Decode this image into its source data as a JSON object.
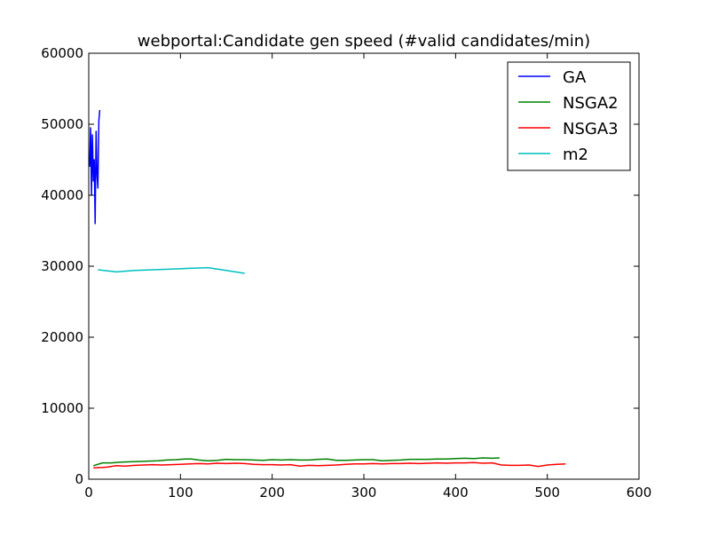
{
  "chart_data": {
    "type": "line",
    "title": "webportal:Candidate gen speed (#valid candidates/min)",
    "xlabel": "",
    "ylabel": "",
    "xlim": [
      0,
      600
    ],
    "ylim": [
      0,
      60000
    ],
    "x_ticks": [
      0,
      100,
      200,
      300,
      400,
      500,
      600
    ],
    "y_ticks": [
      0,
      10000,
      20000,
      30000,
      40000,
      50000,
      60000
    ],
    "grid": false,
    "legend_position": "top-right",
    "series": [
      {
        "name": "GA",
        "color": "#0000ff",
        "x": [
          1,
          2,
          3,
          4,
          5,
          6,
          7,
          8,
          9,
          10,
          11,
          12
        ],
        "y": [
          44000,
          49500,
          40000,
          48500,
          42000,
          45000,
          36000,
          49000,
          43000,
          41000,
          50500,
          52000
        ]
      },
      {
        "name": "NSGA2",
        "color": "#008000",
        "x": [
          5,
          15,
          25,
          35,
          45,
          55,
          65,
          75,
          85,
          95,
          105,
          112,
          120,
          130,
          140,
          150,
          160,
          170,
          180,
          190,
          200,
          210,
          220,
          230,
          240,
          250,
          260,
          270,
          280,
          290,
          300,
          310,
          320,
          330,
          340,
          350,
          360,
          370,
          380,
          390,
          400,
          410,
          420,
          430,
          440,
          448
        ],
        "y": [
          1900,
          2300,
          2300,
          2400,
          2450,
          2500,
          2550,
          2600,
          2700,
          2750,
          2850,
          2850,
          2700,
          2600,
          2650,
          2800,
          2750,
          2750,
          2700,
          2650,
          2750,
          2700,
          2750,
          2700,
          2700,
          2800,
          2850,
          2650,
          2650,
          2700,
          2750,
          2750,
          2600,
          2650,
          2700,
          2800,
          2800,
          2800,
          2850,
          2850,
          2900,
          2950,
          2900,
          3000,
          2950,
          3000
        ]
      },
      {
        "name": "NSGA3",
        "color": "#ff0000",
        "x": [
          5,
          15,
          20,
          30,
          40,
          50,
          60,
          70,
          80,
          90,
          100,
          110,
          120,
          130,
          140,
          150,
          160,
          170,
          180,
          190,
          200,
          210,
          220,
          230,
          240,
          250,
          260,
          270,
          280,
          290,
          300,
          310,
          320,
          330,
          340,
          350,
          360,
          370,
          380,
          390,
          400,
          410,
          420,
          430,
          440,
          450,
          460,
          470,
          480,
          490,
          500,
          510,
          520
        ],
        "y": [
          1600,
          1650,
          1700,
          1900,
          1850,
          1950,
          2000,
          2050,
          2000,
          2050,
          2100,
          2150,
          2200,
          2150,
          2250,
          2200,
          2250,
          2200,
          2100,
          2050,
          2050,
          2000,
          2050,
          1850,
          1950,
          1900,
          1950,
          2000,
          2100,
          2150,
          2150,
          2200,
          2150,
          2200,
          2200,
          2250,
          2200,
          2250,
          2300,
          2250,
          2300,
          2300,
          2350,
          2250,
          2300,
          2000,
          1950,
          1950,
          2000,
          1800,
          2000,
          2100,
          2150
        ]
      },
      {
        "name": "m2",
        "color": "#00bfbf",
        "x": [
          10,
          30,
          50,
          70,
          90,
          110,
          130,
          150,
          170
        ],
        "y": [
          29500,
          29200,
          29400,
          29500,
          29600,
          29700,
          29800,
          29400,
          29000
        ]
      }
    ]
  }
}
